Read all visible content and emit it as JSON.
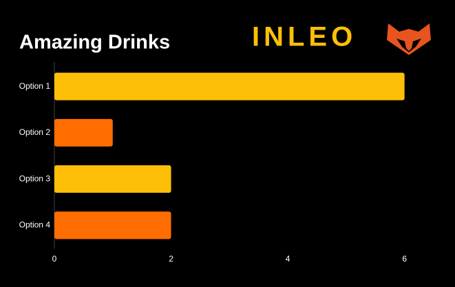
{
  "logo": "INLEO",
  "chart_data": {
    "type": "bar",
    "orientation": "horizontal",
    "title": "Amazing Drinks",
    "categories": [
      "Option 1",
      "Option 2",
      "Option 3",
      "Option 4"
    ],
    "values": [
      6,
      1,
      2,
      2
    ],
    "colors": [
      "#fdbf08",
      "#ff6d00",
      "#fdbf08",
      "#ff6d00"
    ],
    "xlim": [
      0,
      6.7
    ],
    "xticks": [
      0,
      2,
      4,
      6
    ],
    "grid": false
  }
}
